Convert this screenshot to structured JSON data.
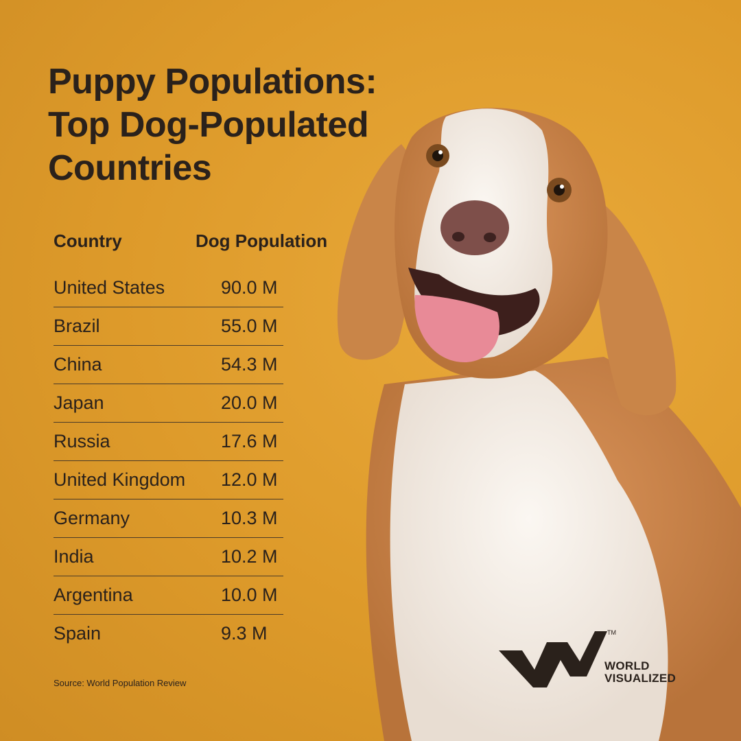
{
  "title": {
    "line1": "Puppy Populations:",
    "line2": "Top Dog-Populated",
    "line3": "Countries"
  },
  "table": {
    "headers": {
      "country": "Country",
      "population": "Dog Population"
    },
    "rows": [
      {
        "country": "United States",
        "population": "90.0 M"
      },
      {
        "country": "Brazil",
        "population": "55.0 M"
      },
      {
        "country": "China",
        "population": "54.3 M"
      },
      {
        "country": "Japan",
        "population": "20.0 M"
      },
      {
        "country": "Russia",
        "population": "17.6 M"
      },
      {
        "country": "United Kingdom",
        "population": "12.0 M"
      },
      {
        "country": "Germany",
        "population": "10.3 M"
      },
      {
        "country": "India",
        "population": "10.2 M"
      },
      {
        "country": "Argentina",
        "population": "10.0 M"
      },
      {
        "country": "Spain",
        "population": "9.3 M"
      }
    ]
  },
  "source": "Source: World Population Review",
  "brand": {
    "line1": "WORLD",
    "line2": "VISUALIZED",
    "trademark": "TM"
  },
  "colors": {
    "background": "#dd9a2a",
    "text": "#2a211b"
  }
}
